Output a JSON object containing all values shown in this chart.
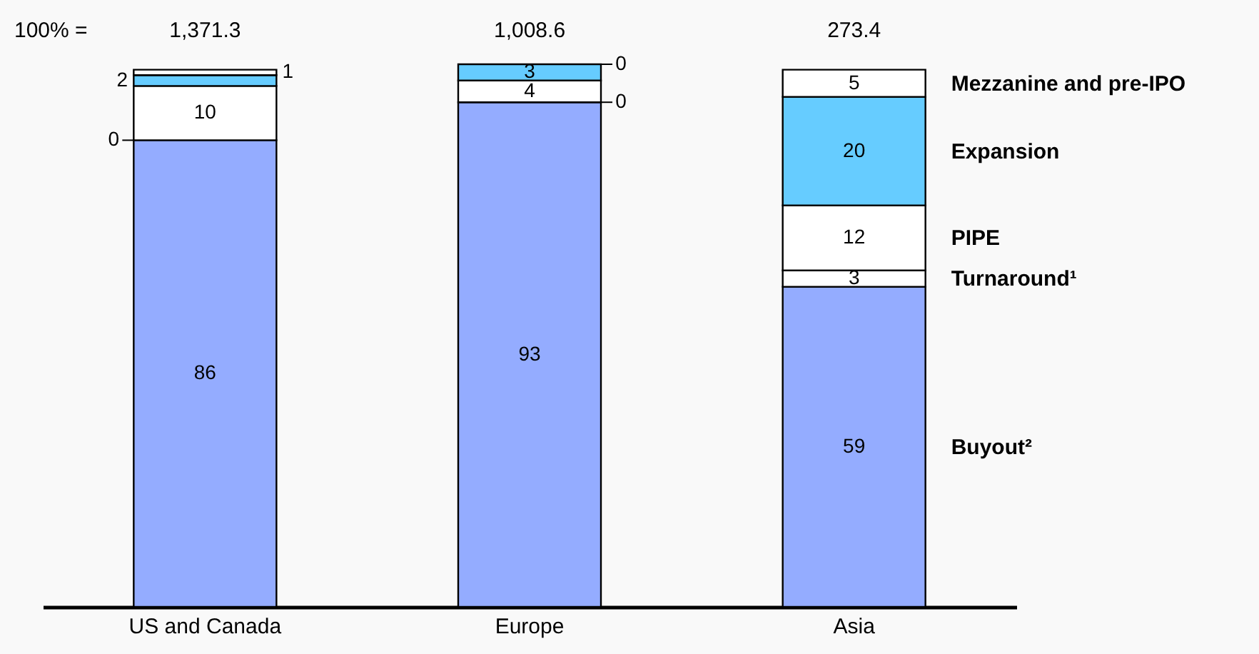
{
  "chart_data": {
    "type": "bar",
    "stacked": true,
    "legend": false,
    "grid": false,
    "tick_labels": "x",
    "categories": [
      "US and Canada",
      "Europe",
      "Asia"
    ],
    "ylim": [
      0,
      100
    ],
    "series": [
      {
        "name": "Buyout²",
        "color": "#94acff",
        "values": [
          86,
          93,
          59
        ],
        "value_labels": [
          "86",
          "93",
          "59"
        ]
      },
      {
        "name": "Turnaround¹",
        "color": "#ffffff",
        "values": [
          0,
          0,
          3
        ],
        "value_labels": [
          null,
          null,
          "3"
        ]
      },
      {
        "name": "PIPE",
        "color": "#ffffff",
        "values": [
          10,
          4,
          12
        ],
        "value_labels": [
          "10",
          "4",
          "12"
        ]
      },
      {
        "name": "Expansion",
        "color": "#66ccff",
        "values": [
          2,
          3,
          20
        ],
        "value_labels": [
          "2",
          "3",
          "20"
        ]
      },
      {
        "name": "Mezzanine and pre-IPO",
        "color": "#ffffff",
        "values": [
          1,
          0,
          5
        ],
        "value_labels": [
          "1",
          null,
          "5"
        ]
      }
    ],
    "annotations": [
      "100% =",
      "1,371.3",
      "1,008.6",
      "273.4",
      "0",
      "0",
      "0"
    ]
  }
}
